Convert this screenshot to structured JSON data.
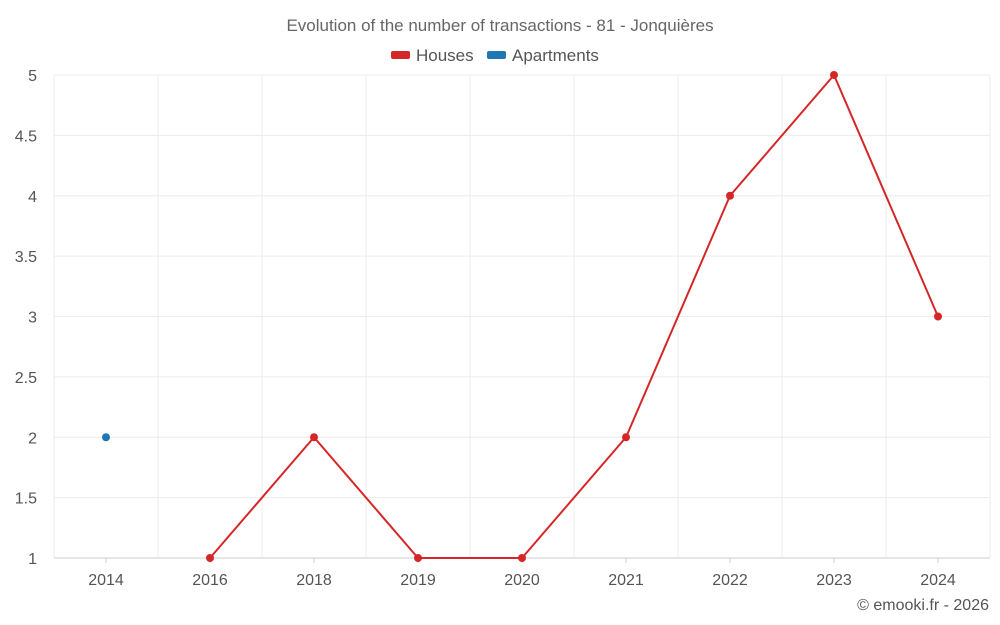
{
  "chart_data": {
    "type": "line",
    "title": "Evolution of the number of transactions - 81 - Jonquières",
    "credit": "© emooki.fr - 2026",
    "categories": [
      "2014",
      "2016",
      "2018",
      "2019",
      "2020",
      "2021",
      "2022",
      "2023",
      "2024"
    ],
    "series": [
      {
        "name": "Houses",
        "color": "#d62728",
        "values": [
          null,
          1,
          2,
          1,
          1,
          2,
          4,
          5,
          3
        ]
      },
      {
        "name": "Apartments",
        "color": "#1f77b4",
        "values": [
          2,
          null,
          null,
          null,
          null,
          null,
          null,
          null,
          null
        ]
      }
    ],
    "yticks": [
      "1",
      "1.5",
      "2",
      "2.5",
      "3",
      "3.5",
      "4",
      "4.5",
      "5"
    ],
    "ylim": [
      1,
      5
    ],
    "xlabel": "",
    "ylabel": "",
    "grid": true,
    "legend": "top-center"
  }
}
